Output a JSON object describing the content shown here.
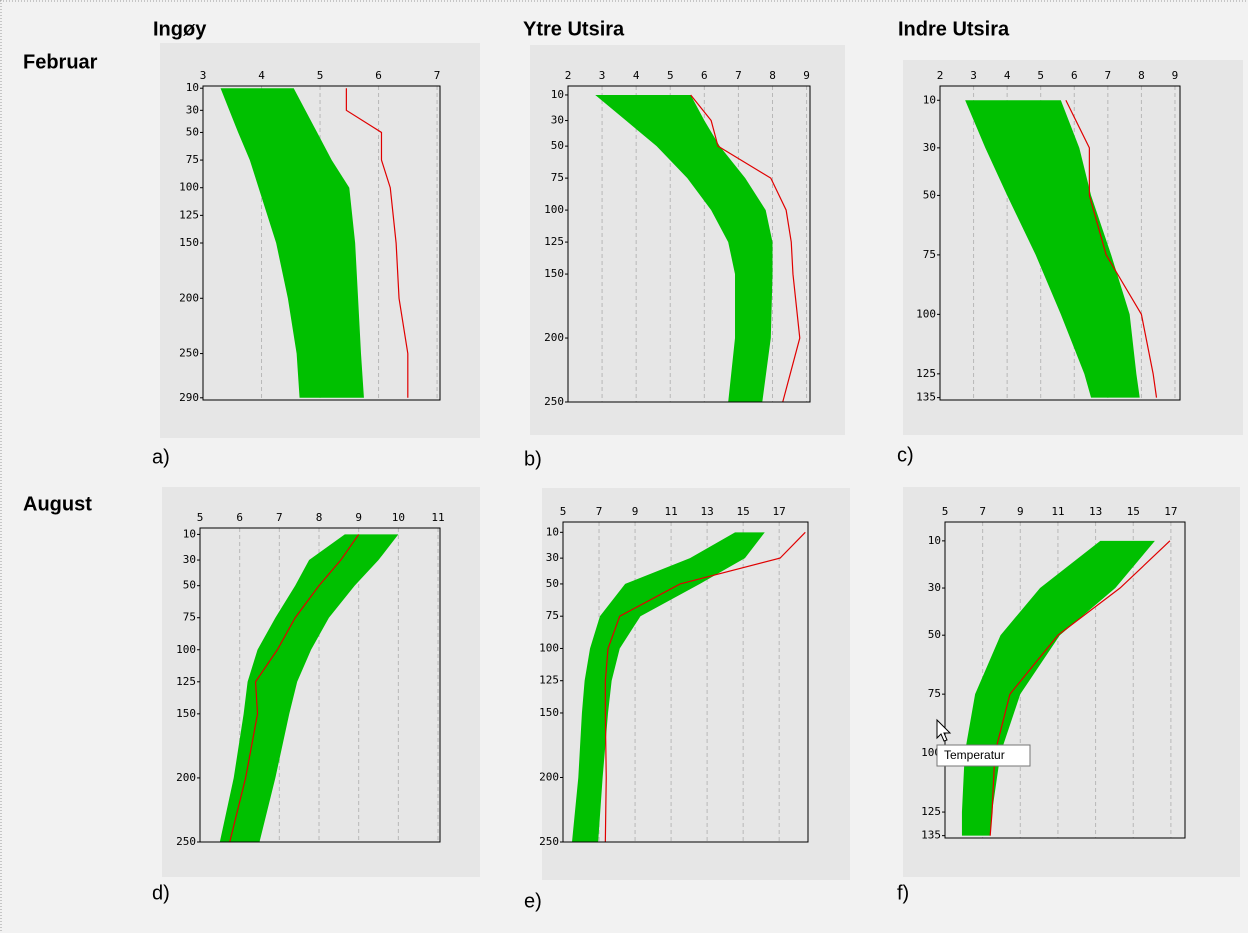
{
  "columns": [
    "Ingøy",
    "Ytre Utsira",
    "Indre Utsira"
  ],
  "rows": [
    "Februar",
    "August"
  ],
  "tooltip": "Temperatur",
  "chart_data": [
    {
      "type": "profile",
      "panel_label": "a)",
      "band_color": "#00c000",
      "line_color": "#e00000",
      "xlim": [
        3,
        7.05
      ],
      "xticks": [
        3,
        4,
        5,
        6,
        7
      ],
      "ylim": [
        8,
        292
      ],
      "yticks": [
        10,
        30,
        50,
        75,
        100,
        125,
        150,
        200,
        250,
        290
      ],
      "grid": true,
      "depths": [
        10,
        30,
        50,
        75,
        100,
        125,
        150,
        200,
        250,
        290
      ],
      "band_low": [
        3.3,
        3.45,
        3.6,
        3.8,
        3.95,
        4.1,
        4.25,
        4.45,
        4.6,
        4.65
      ],
      "band_high": [
        4.55,
        4.75,
        4.95,
        5.2,
        5.5,
        5.55,
        5.6,
        5.65,
        5.7,
        5.75
      ],
      "line": [
        5.45,
        5.45,
        6.05,
        6.05,
        6.2,
        6.25,
        6.3,
        6.35,
        6.5,
        6.5
      ]
    },
    {
      "type": "profile",
      "panel_label": "b)",
      "band_color": "#00c000",
      "line_color": "#e00000",
      "xlim": [
        2,
        9.1
      ],
      "xticks": [
        2,
        3,
        4,
        5,
        6,
        7,
        8,
        9
      ],
      "ylim": [
        3,
        250
      ],
      "yticks": [
        10,
        30,
        50,
        75,
        100,
        125,
        150,
        200,
        250
      ],
      "grid": true,
      "depths": [
        10,
        30,
        50,
        75,
        100,
        125,
        150,
        200,
        250
      ],
      "band_low": [
        2.8,
        3.7,
        4.6,
        5.5,
        6.2,
        6.7,
        6.9,
        6.9,
        6.7
      ],
      "band_high": [
        5.6,
        6.0,
        6.45,
        7.2,
        7.8,
        8.0,
        8.0,
        7.95,
        7.7
      ],
      "line": [
        5.6,
        6.2,
        6.4,
        7.95,
        8.4,
        8.55,
        8.6,
        8.8,
        8.3
      ]
    },
    {
      "type": "profile",
      "panel_label": "c)",
      "band_color": "#00c000",
      "line_color": "#e00000",
      "xlim": [
        2,
        9.15
      ],
      "xticks": [
        2,
        3,
        4,
        5,
        6,
        7,
        8,
        9
      ],
      "ylim": [
        4,
        136
      ],
      "yticks": [
        10,
        30,
        50,
        75,
        100,
        125,
        135
      ],
      "grid": true,
      "depths": [
        10,
        30,
        50,
        75,
        100,
        125,
        135
      ],
      "band_low": [
        2.75,
        3.35,
        4.0,
        4.85,
        5.6,
        6.3,
        6.5
      ],
      "band_high": [
        5.6,
        6.15,
        6.5,
        7.1,
        7.65,
        7.85,
        7.95
      ],
      "line": [
        5.75,
        6.45,
        6.45,
        6.95,
        8.0,
        8.35,
        8.45
      ]
    },
    {
      "type": "profile",
      "panel_label": "d)",
      "band_color": "#00c000",
      "line_color": "#e00000",
      "xlim": [
        5,
        11.05
      ],
      "xticks": [
        5,
        6,
        7,
        8,
        9,
        10,
        11
      ],
      "ylim": [
        5,
        250
      ],
      "yticks": [
        10,
        30,
        50,
        75,
        100,
        125,
        150,
        200,
        250
      ],
      "grid": true,
      "depths": [
        10,
        30,
        50,
        75,
        100,
        125,
        150,
        200,
        250
      ],
      "band_low": [
        8.65,
        7.75,
        7.4,
        6.9,
        6.45,
        6.2,
        6.1,
        5.85,
        5.5
      ],
      "band_high": [
        10.0,
        9.5,
        8.9,
        8.25,
        7.8,
        7.45,
        7.25,
        6.9,
        6.5
      ],
      "line": [
        9.0,
        8.55,
        8.0,
        7.4,
        6.95,
        6.4,
        6.45,
        6.15,
        5.75
      ]
    },
    {
      "type": "profile",
      "panel_label": "e)",
      "band_color": "#00c000",
      "line_color": "#e00000",
      "xlim": [
        5,
        18.6
      ],
      "xticks": [
        5,
        7,
        9,
        11,
        13,
        15,
        17
      ],
      "ylim": [
        2,
        250
      ],
      "yticks": [
        10,
        30,
        50,
        75,
        100,
        125,
        150,
        200,
        250
      ],
      "grid": true,
      "depths": [
        10,
        30,
        50,
        75,
        100,
        125,
        150,
        200,
        250
      ],
      "band_low": [
        14.55,
        12.05,
        8.45,
        7.05,
        6.5,
        6.2,
        6.05,
        5.85,
        5.5
      ],
      "band_high": [
        16.2,
        15.1,
        12.6,
        9.3,
        8.15,
        7.7,
        7.5,
        7.2,
        6.95
      ],
      "line": [
        18.45,
        17.05,
        11.5,
        8.15,
        7.5,
        7.35,
        7.35,
        7.4,
        7.35
      ]
    },
    {
      "type": "profile",
      "panel_label": "f)",
      "band_color": "#00c000",
      "line_color": "#e00000",
      "xlim": [
        5,
        17.75
      ],
      "xticks": [
        5,
        7,
        9,
        11,
        13,
        15,
        17
      ],
      "ylim": [
        2,
        136
      ],
      "yticks": [
        10,
        30,
        50,
        75,
        100,
        125,
        135
      ],
      "grid": true,
      "depths": [
        10,
        30,
        50,
        75,
        100,
        125,
        135
      ],
      "band_low": [
        13.25,
        10.05,
        7.95,
        6.6,
        6.05,
        5.9,
        5.9
      ],
      "band_high": [
        16.15,
        14.05,
        11.1,
        9.0,
        7.95,
        7.5,
        7.4
      ],
      "line": [
        16.95,
        14.3,
        11.0,
        8.45,
        7.65,
        7.5,
        7.4
      ]
    }
  ]
}
